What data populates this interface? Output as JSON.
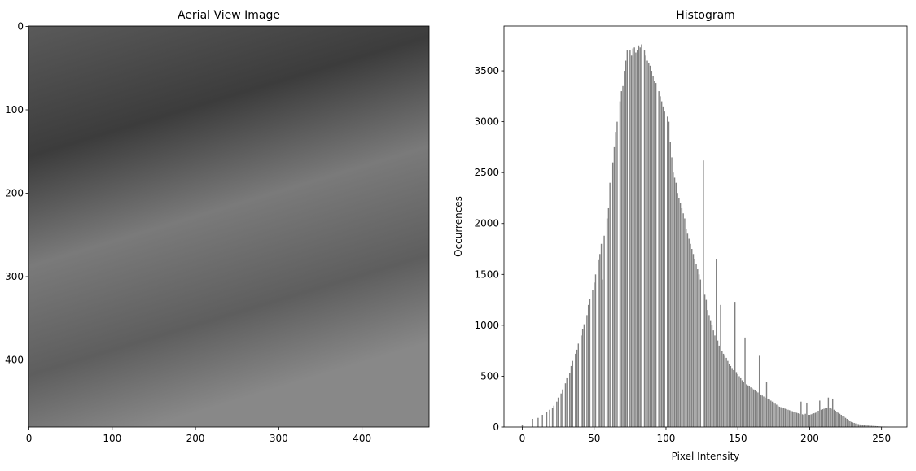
{
  "chart_data": [
    {
      "type": "image",
      "title": "Aerial View Image",
      "xlim": [
        -0.5,
        480.5
      ],
      "ylim": [
        480.5,
        -0.5
      ],
      "xticks": [
        0,
        100,
        200,
        300,
        400
      ],
      "yticks": [
        0,
        100,
        200,
        300,
        400
      ]
    },
    {
      "type": "bar",
      "title": "Histogram",
      "xlabel": "Pixel Intensity",
      "ylabel": "Occurrences",
      "color": "#808080",
      "xlim": [
        -12.75,
        267.75
      ],
      "ylim": [
        0,
        3940
      ],
      "xticks": [
        0,
        50,
        100,
        150,
        200,
        250
      ],
      "yticks": [
        0,
        500,
        1000,
        1500,
        2000,
        2500,
        3000,
        3500
      ],
      "x": [
        0,
        1,
        2,
        3,
        4,
        5,
        6,
        7,
        8,
        9,
        10,
        11,
        12,
        13,
        14,
        15,
        16,
        17,
        18,
        19,
        20,
        21,
        22,
        23,
        24,
        25,
        26,
        27,
        28,
        29,
        30,
        31,
        32,
        33,
        34,
        35,
        36,
        37,
        38,
        39,
        40,
        41,
        42,
        43,
        44,
        45,
        46,
        47,
        48,
        49,
        50,
        51,
        52,
        53,
        54,
        55,
        56,
        57,
        58,
        59,
        60,
        61,
        62,
        63,
        64,
        65,
        66,
        67,
        68,
        69,
        70,
        71,
        72,
        73,
        74,
        75,
        76,
        77,
        78,
        79,
        80,
        81,
        82,
        83,
        84,
        85,
        86,
        87,
        88,
        89,
        90,
        91,
        92,
        93,
        94,
        95,
        96,
        97,
        98,
        99,
        100,
        101,
        102,
        103,
        104,
        105,
        106,
        107,
        108,
        109,
        110,
        111,
        112,
        113,
        114,
        115,
        116,
        117,
        118,
        119,
        120,
        121,
        122,
        123,
        124,
        125,
        126,
        127,
        128,
        129,
        130,
        131,
        132,
        133,
        134,
        135,
        136,
        137,
        138,
        139,
        140,
        141,
        142,
        143,
        144,
        145,
        146,
        147,
        148,
        149,
        150,
        151,
        152,
        153,
        154,
        155,
        156,
        157,
        158,
        159,
        160,
        161,
        162,
        163,
        164,
        165,
        166,
        167,
        168,
        169,
        170,
        171,
        172,
        173,
        174,
        175,
        176,
        177,
        178,
        179,
        180,
        181,
        182,
        183,
        184,
        185,
        186,
        187,
        188,
        189,
        190,
        191,
        192,
        193,
        194,
        195,
        196,
        197,
        198,
        199,
        200,
        201,
        202,
        203,
        204,
        205,
        206,
        207,
        208,
        209,
        210,
        211,
        212,
        213,
        214,
        215,
        216,
        217,
        218,
        219,
        220,
        221,
        222,
        223,
        224,
        225,
        226,
        227,
        228,
        229,
        230,
        231,
        232,
        233,
        234,
        235,
        236,
        237,
        238,
        239,
        240,
        241,
        242,
        243,
        244,
        245,
        246,
        247,
        248,
        249,
        250,
        251,
        252,
        253,
        254,
        255
      ],
      "values": [
        20,
        0,
        0,
        0,
        0,
        0,
        0,
        80,
        0,
        0,
        0,
        90,
        0,
        0,
        120,
        0,
        0,
        150,
        0,
        170,
        0,
        190,
        210,
        0,
        250,
        290,
        0,
        330,
        370,
        0,
        430,
        480,
        0,
        530,
        600,
        650,
        0,
        720,
        760,
        820,
        0,
        900,
        960,
        1010,
        0,
        1100,
        1200,
        1260,
        0,
        1350,
        1420,
        1500,
        0,
        1640,
        1700,
        1800,
        1450,
        1880,
        0,
        2050,
        2150,
        2400,
        0,
        2600,
        2750,
        2900,
        3000,
        0,
        3200,
        3300,
        3350,
        3500,
        3600,
        3700,
        0,
        3700,
        3650,
        3720,
        3730,
        3680,
        3700,
        3750,
        3730,
        3760,
        0,
        3700,
        3650,
        3600,
        3580,
        3550,
        3500,
        3450,
        3400,
        3380,
        0,
        3300,
        3250,
        3200,
        3150,
        3100,
        0,
        3050,
        3000,
        2800,
        2650,
        2500,
        2450,
        2400,
        2300,
        2250,
        2200,
        2150,
        2100,
        2050,
        1950,
        1900,
        1850,
        1800,
        1750,
        1700,
        1650,
        1600,
        1550,
        1500,
        1450,
        0,
        2620,
        1300,
        1250,
        1150,
        1100,
        1050,
        1000,
        950,
        900,
        1650,
        850,
        800,
        1200,
        750,
        720,
        700,
        680,
        650,
        620,
        600,
        580,
        560,
        1230,
        540,
        520,
        500,
        480,
        460,
        440,
        880,
        420,
        410,
        400,
        390,
        380,
        370,
        360,
        350,
        340,
        700,
        320,
        310,
        300,
        290,
        440,
        280,
        270,
        260,
        250,
        240,
        230,
        220,
        210,
        200,
        195,
        190,
        185,
        180,
        175,
        170,
        165,
        160,
        155,
        150,
        145,
        140,
        135,
        130,
        250,
        125,
        120,
        130,
        240,
        120,
        120,
        125,
        130,
        135,
        140,
        150,
        160,
        260,
        170,
        175,
        180,
        185,
        190,
        290,
        190,
        180,
        280,
        170,
        160,
        150,
        140,
        130,
        120,
        110,
        100,
        90,
        80,
        70,
        60,
        50,
        45,
        40,
        35,
        30,
        28,
        25,
        22,
        20,
        18,
        16,
        15,
        14,
        13,
        12,
        11,
        10,
        9,
        8,
        7,
        6,
        5,
        4,
        3,
        2,
        1,
        0
      ]
    }
  ]
}
